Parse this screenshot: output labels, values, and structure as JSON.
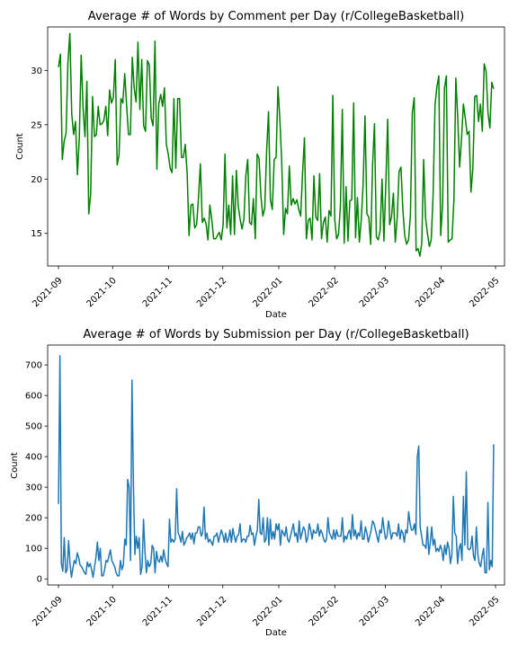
{
  "chart_data": [
    {
      "type": "line",
      "title": "Average # of Words by Comment per Day (r/CollegeBasketball)",
      "xlabel": "Date",
      "ylabel": "Count",
      "color": "#008000",
      "x_start": "2021-09-01",
      "x_end": "2022-04-30",
      "xlim": [
        "2021-08-26",
        "2022-05-06"
      ],
      "ylim": [
        12.0,
        34.0
      ],
      "yticks": [
        15,
        20,
        25,
        30
      ],
      "xtick_labels": [
        "2021-09",
        "2021-10",
        "2021-11",
        "2021-12",
        "2022-01",
        "2022-02",
        "2022-03",
        "2022-04",
        "2022-05"
      ],
      "xtick_dates": [
        "2021-09-01",
        "2021-10-01",
        "2021-11-01",
        "2021-12-01",
        "2022-01-01",
        "2022-02-01",
        "2022-03-01",
        "2022-04-01",
        "2022-05-01"
      ],
      "grid": false,
      "values": [
        30.3,
        31.5,
        21.8,
        23.5,
        24.2,
        30.8,
        33.4,
        26,
        24.1,
        25.3,
        20.4,
        23.8,
        31.4,
        26.5,
        23.9,
        29,
        16.8,
        18.6,
        27.6,
        23.9,
        24.1,
        26.7,
        25,
        25.1,
        25.4,
        26.7,
        24,
        28.2,
        27,
        27.5,
        31,
        21.3,
        22.2,
        27.4,
        27,
        29.7,
        26.8,
        24.1,
        24.1,
        31.2,
        28.4,
        27.1,
        32.6,
        26.4,
        31,
        24.9,
        24.4,
        30.9,
        30.5,
        25.6,
        24.9,
        32.7,
        20.9,
        26.9,
        27.8,
        26.7,
        28.4,
        23.2,
        22.3,
        21,
        20.6,
        27.4,
        21,
        27.4,
        27.4,
        22,
        22,
        23.2,
        20.5,
        14.8,
        17.6,
        17.7,
        15.5,
        15.8,
        18.3,
        21.4,
        16,
        16.4,
        15.9,
        14.4,
        17.6,
        16.3,
        14.5,
        14.5,
        14.8,
        15.1,
        14.4,
        15.8,
        22.3,
        15.5,
        17.6,
        14.9,
        20.3,
        14.9,
        20.8,
        17.5,
        16.3,
        15.4,
        16.3,
        20.3,
        21.8,
        16,
        15.8,
        18.2,
        14.5,
        22.3,
        21.9,
        18.4,
        16.6,
        17.3,
        22.6,
        26.2,
        18.1,
        17.2,
        21.8,
        22,
        28.5,
        25.5,
        21.5,
        14.9,
        17.3,
        16.8,
        21.2,
        17.6,
        18.2,
        17.7,
        18.1,
        17.2,
        16.6,
        20.6,
        23.8,
        14.5,
        16.2,
        16.4,
        14.4,
        20.3,
        16.5,
        16.2,
        20.5,
        14.5,
        16,
        16.5,
        14.2,
        17.1,
        16.6,
        27.7,
        16.3,
        14.5,
        14.9,
        17.5,
        26.4,
        14.1,
        19.3,
        14.3,
        18,
        18.1,
        27,
        14.6,
        18.3,
        14.2,
        16.2,
        19.5,
        25.8,
        16.8,
        16.5,
        14,
        21.3,
        25.1,
        14.7,
        14.4,
        15.3,
        20,
        14.3,
        19.6,
        25.5,
        15.8,
        16.5,
        18.7,
        14.2,
        16.4,
        20.7,
        21.1,
        17.2,
        14.8,
        14,
        14.4,
        16.7,
        26.1,
        27.5,
        13.4,
        13.6,
        12.9,
        14.1,
        21.8,
        16.4,
        15,
        13.8,
        14.4,
        18.6,
        26.8,
        28.5,
        29.5,
        14.8,
        17.6,
        28.4,
        29.5,
        14.2,
        14.4,
        14.5,
        18.2,
        29.3,
        25.7,
        21.1,
        23.7,
        26.9,
        25.6,
        24.1,
        24.4,
        18.8,
        21,
        27.6,
        27.7,
        25.3,
        26.9,
        24.4,
        30.6,
        29.9,
        26.1,
        24.7,
        28.9,
        28.3
      ]
    },
    {
      "type": "line",
      "title": "Average # of Words by Submission per Day (r/CollegeBasketball)",
      "xlabel": "Date",
      "ylabel": "Count",
      "color": "#1f77b4",
      "x_start": "2021-09-01",
      "x_end": "2022-04-30",
      "xlim": [
        "2021-08-26",
        "2022-05-06"
      ],
      "ylim": [
        -20,
        765
      ],
      "yticks": [
        0,
        100,
        200,
        300,
        400,
        500,
        600,
        700
      ],
      "xtick_labels": [
        "2021-09",
        "2021-10",
        "2021-11",
        "2021-12",
        "2022-01",
        "2022-02",
        "2022-03",
        "2022-04",
        "2022-05"
      ],
      "xtick_dates": [
        "2021-09-01",
        "2021-10-01",
        "2021-11-01",
        "2021-12-01",
        "2022-01-01",
        "2022-02-01",
        "2022-03-01",
        "2022-04-01",
        "2022-05-01"
      ],
      "grid": false,
      "values": [
        245,
        730,
        50,
        25,
        135,
        20,
        30,
        125,
        50,
        5,
        35,
        60,
        50,
        85,
        70,
        45,
        40,
        30,
        20,
        15,
        55,
        40,
        50,
        30,
        5,
        40,
        70,
        120,
        60,
        100,
        10,
        10,
        30,
        60,
        55,
        75,
        95,
        60,
        50,
        40,
        20,
        10,
        10,
        60,
        30,
        45,
        130,
        110,
        325,
        300,
        60,
        650,
        310,
        80,
        140,
        100,
        135,
        15,
        40,
        195,
        90,
        20,
        60,
        40,
        50,
        110,
        100,
        20,
        90,
        60,
        55,
        75,
        55,
        95,
        65,
        50,
        40,
        195,
        120,
        130,
        120,
        130,
        295,
        150,
        140,
        120,
        155,
        110,
        120,
        135,
        140,
        150,
        130,
        150,
        115,
        150,
        150,
        170,
        170,
        140,
        150,
        235,
        130,
        150,
        120,
        130,
        120,
        110,
        140,
        140,
        150,
        120,
        140,
        160,
        145,
        120,
        150,
        120,
        130,
        160,
        120,
        165,
        140,
        120,
        140,
        145,
        180,
        120,
        130,
        130,
        120,
        140,
        140,
        175,
        145,
        150,
        110,
        140,
        160,
        260,
        150,
        145,
        200,
        120,
        130,
        200,
        110,
        195,
        130,
        155,
        130,
        180,
        160,
        180,
        110,
        160,
        150,
        140,
        170,
        130,
        120,
        140,
        160,
        180,
        140,
        150,
        120,
        190,
        130,
        150,
        170,
        160,
        120,
        135,
        180,
        160,
        130,
        160,
        150,
        150,
        180,
        140,
        160,
        150,
        130,
        120,
        130,
        200,
        150,
        140,
        130,
        160,
        130,
        160,
        140,
        140,
        140,
        200,
        120,
        140,
        130,
        150,
        160,
        130,
        210,
        140,
        160,
        130,
        150,
        140,
        190,
        130,
        130,
        170,
        150,
        120,
        140,
        160,
        190,
        180,
        160,
        140,
        120,
        160,
        150,
        200,
        160,
        130,
        140,
        190,
        160,
        130,
        150,
        150,
        150,
        140,
        180,
        130,
        160,
        150,
        120,
        160,
        150,
        220,
        180,
        160,
        160,
        180,
        145,
        400,
        435,
        170,
        140,
        110,
        110,
        100,
        170,
        80,
        120,
        170,
        110,
        130,
        90,
        100,
        90,
        110,
        95,
        60,
        110,
        80,
        120,
        100,
        50,
        80,
        270,
        150,
        140,
        50,
        100,
        115,
        60,
        270,
        110,
        350,
        100,
        95,
        100,
        140,
        75,
        60,
        170,
        80,
        50,
        40,
        75,
        100,
        20,
        20,
        250,
        30,
        60,
        40,
        440
      ]
    }
  ]
}
